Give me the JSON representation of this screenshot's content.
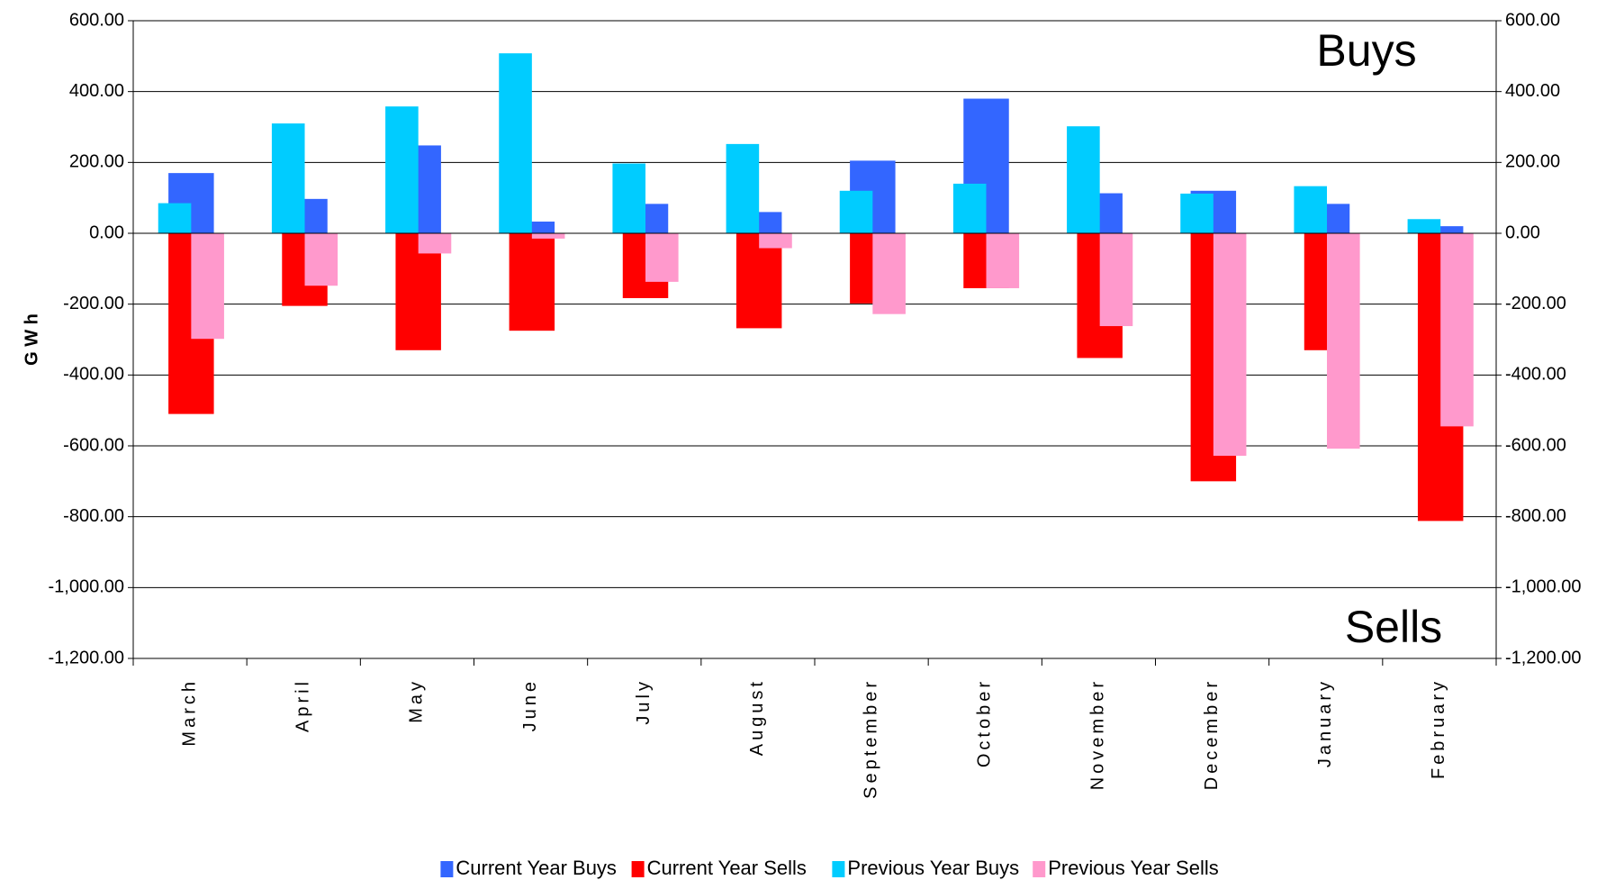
{
  "chart_data": {
    "type": "bar",
    "y_label": "G W h",
    "annotations": [
      {
        "text": "Buys",
        "color": "#1f6fe8"
      },
      {
        "text": "Sells",
        "color": "#ff0000"
      }
    ],
    "categories": [
      "March",
      "April",
      "May",
      "June",
      "July",
      "August",
      "September",
      "October",
      "November",
      "December",
      "January",
      "February"
    ],
    "series": [
      {
        "name": "Current Year Buys",
        "color": "#3366ff",
        "values": [
          170,
          97,
          248,
          33,
          83,
          60,
          205,
          380,
          113,
          120,
          83,
          20
        ]
      },
      {
        "name": "Current Year Sells",
        "color": "#ff0000",
        "values": [
          -510,
          -205,
          -330,
          -275,
          -183,
          -268,
          -198,
          -155,
          -352,
          -700,
          -330,
          -812
        ]
      },
      {
        "name": "Previous Year Buys",
        "color": "#00ccff",
        "values": [
          85,
          310,
          358,
          508,
          197,
          252,
          120,
          140,
          302,
          112,
          133,
          40
        ]
      },
      {
        "name": "Previous Year Sells",
        "color": "#ff99cc",
        "values": [
          -298,
          -148,
          -57,
          -15,
          -137,
          -42,
          -228,
          -155,
          -262,
          -628,
          -608,
          -545
        ]
      }
    ],
    "ylim": [
      -1200,
      600
    ],
    "yticks": [
      {
        "value": 600,
        "label": "600.00"
      },
      {
        "value": 400,
        "label": "400.00"
      },
      {
        "value": 200,
        "label": "200.00"
      },
      {
        "value": 0,
        "label": "0.00"
      },
      {
        "value": -200,
        "label": "-200.00"
      },
      {
        "value": -400,
        "label": "-400.00"
      },
      {
        "value": -600,
        "label": "-600.00"
      },
      {
        "value": -800,
        "label": "-800.00"
      },
      {
        "value": -1000,
        "label": "-1,000.00"
      },
      {
        "value": -1200,
        "label": "-1,200.00"
      }
    ],
    "y2lim": [
      -1200,
      600
    ],
    "y2ticks": [
      {
        "value": 600,
        "label": "600.00"
      },
      {
        "value": 400,
        "label": "400.00"
      },
      {
        "value": 200,
        "label": "200.00"
      },
      {
        "value": 0,
        "label": "0.00"
      },
      {
        "value": -200,
        "label": "-200.00"
      },
      {
        "value": -400,
        "label": "-400.00"
      },
      {
        "value": -600,
        "label": "-600.00"
      },
      {
        "value": -800,
        "label": "-800.00"
      },
      {
        "value": -1000,
        "label": "-1,000.00"
      },
      {
        "value": -1200,
        "label": "-1,200.00"
      }
    ],
    "grid": true,
    "legend": "bottom"
  }
}
